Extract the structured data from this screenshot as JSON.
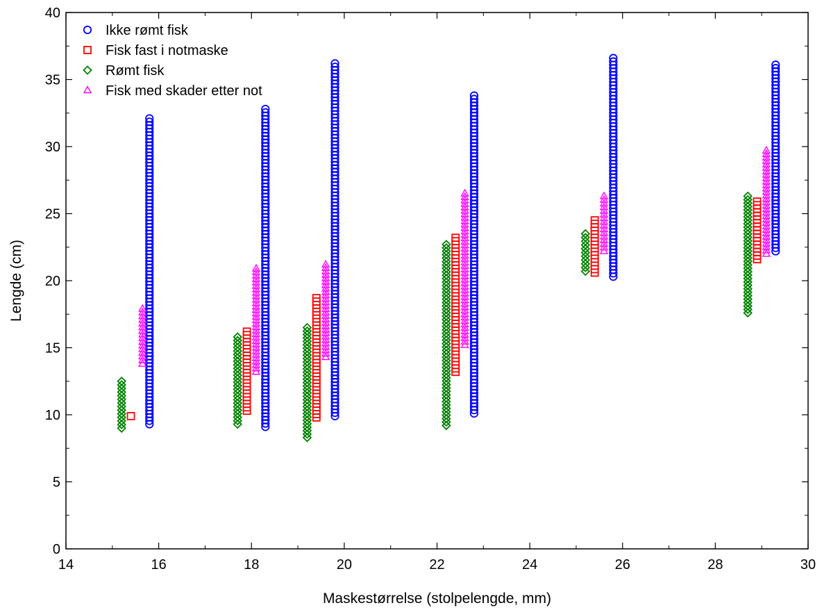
{
  "chart_data": {
    "type": "scatter",
    "title": "",
    "xlabel": "Maskestørrelse (stolpelengde, mm)",
    "ylabel": "Lengde (cm)",
    "xlim": [
      14,
      30
    ],
    "ylim": [
      0,
      40
    ],
    "xticks": [
      14,
      16,
      18,
      20,
      22,
      24,
      26,
      28,
      30
    ],
    "yticks": [
      0,
      5,
      10,
      15,
      20,
      25,
      30,
      35,
      40
    ],
    "grid": false,
    "legend_position": "top-left",
    "series": [
      {
        "name": "Ikke rømt fisk",
        "marker": "circle",
        "color": "#0000ff",
        "groups": [
          {
            "x": 15.8,
            "y_min": 9.3,
            "y_max": 32.1
          },
          {
            "x": 18.3,
            "y_min": 9.1,
            "y_max": 32.8
          },
          {
            "x": 19.8,
            "y_min": 9.9,
            "y_max": 36.2
          },
          {
            "x": 22.8,
            "y_min": 10.1,
            "y_max": 33.8
          },
          {
            "x": 25.8,
            "y_min": 20.3,
            "y_max": 36.6
          },
          {
            "x": 29.3,
            "y_min": 22.2,
            "y_max": 36.1
          }
        ]
      },
      {
        "name": "Fisk fast i notmaske",
        "marker": "square",
        "color": "#ff0000",
        "groups": [
          {
            "x": 15.4,
            "y_min": 9.9,
            "y_max": 9.9
          },
          {
            "x": 17.9,
            "y_min": 10.3,
            "y_max": 16.2
          },
          {
            "x": 19.4,
            "y_min": 9.8,
            "y_max": 18.7
          },
          {
            "x": 22.4,
            "y_min": 13.2,
            "y_max": 23.2
          },
          {
            "x": 25.4,
            "y_min": 20.6,
            "y_max": 24.5
          },
          {
            "x": 28.9,
            "y_min": 21.6,
            "y_max": 25.9
          }
        ]
      },
      {
        "name": "Rømt fisk",
        "marker": "diamond",
        "color": "#008000",
        "groups": [
          {
            "x": 15.2,
            "y_min": 9.0,
            "y_max": 12.5
          },
          {
            "x": 17.7,
            "y_min": 9.3,
            "y_max": 15.8
          },
          {
            "x": 19.2,
            "y_min": 8.3,
            "y_max": 16.5
          },
          {
            "x": 22.2,
            "y_min": 9.2,
            "y_max": 22.7
          },
          {
            "x": 25.2,
            "y_min": 20.7,
            "y_max": 23.5
          },
          {
            "x": 28.7,
            "y_min": 17.6,
            "y_max": 26.3
          }
        ]
      },
      {
        "name": "Fisk med skader etter not",
        "marker": "triangle",
        "color": "#ff00ff",
        "groups": [
          {
            "x": 15.65,
            "y_min": 13.8,
            "y_max": 17.9
          },
          {
            "x": 18.1,
            "y_min": 13.2,
            "y_max": 20.9
          },
          {
            "x": 19.6,
            "y_min": 14.3,
            "y_max": 21.2
          },
          {
            "x": 22.6,
            "y_min": 15.2,
            "y_max": 26.5
          },
          {
            "x": 25.6,
            "y_min": 22.2,
            "y_max": 26.3
          },
          {
            "x": 29.1,
            "y_min": 22.0,
            "y_max": 29.7
          }
        ]
      }
    ]
  }
}
